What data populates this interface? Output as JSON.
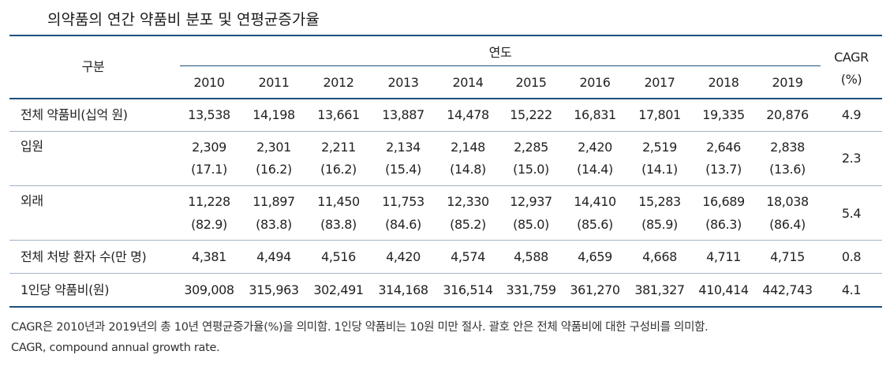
{
  "title": "의약품의 연간 약품비 분포 및 연평균증가율",
  "header": {
    "category": "구분",
    "year_group": "연도",
    "cagr_line1": "CAGR",
    "cagr_line2": "(%)",
    "years": [
      "2010",
      "2011",
      "2012",
      "2013",
      "2014",
      "2015",
      "2016",
      "2017",
      "2018",
      "2019"
    ]
  },
  "rows": [
    {
      "label": "전체 약품비(십억 원)",
      "values": [
        "13,538",
        "14,198",
        "13,661",
        "13,887",
        "14,478",
        "15,222",
        "16,831",
        "17,801",
        "19,335",
        "20,876"
      ],
      "cagr": "4.9"
    },
    {
      "label": "입원",
      "values": [
        "2,309",
        "2,301",
        "2,211",
        "2,134",
        "2,148",
        "2,285",
        "2,420",
        "2,519",
        "2,646",
        "2,838"
      ],
      "shares": [
        "(17.1)",
        "(16.2)",
        "(16.2)",
        "(15.4)",
        "(14.8)",
        "(15.0)",
        "(14.4)",
        "(14.1)",
        "(13.7)",
        "(13.6)"
      ],
      "cagr": "2.3"
    },
    {
      "label": "외래",
      "values": [
        "11,228",
        "11,897",
        "11,450",
        "11,753",
        "12,330",
        "12,937",
        "14,410",
        "15,283",
        "16,689",
        "18,038"
      ],
      "shares": [
        "(82.9)",
        "(83.8)",
        "(83.8)",
        "(84.6)",
        "(85.2)",
        "(85.0)",
        "(85.6)",
        "(85.9)",
        "(86.3)",
        "(86.4)"
      ],
      "cagr": "5.4"
    },
    {
      "label": "전체 처방 환자 수(만 명)",
      "values": [
        "4,381",
        "4,494",
        "4,516",
        "4,420",
        "4,574",
        "4,588",
        "4,659",
        "4,668",
        "4,711",
        "4,715"
      ],
      "cagr": "0.8"
    },
    {
      "label": "1인당 약품비(원)",
      "values": [
        "309,008",
        "315,963",
        "302,491",
        "314,168",
        "316,514",
        "331,759",
        "361,270",
        "381,327",
        "410,414",
        "442,743"
      ],
      "cagr": "4.1"
    }
  ],
  "notes": [
    "CAGR은 2010년과 2019년의 총 10년 연평균증가율(%)을 의미함. 1인당 약품비는 10원 미만 절사. 괄호 안은 전체 약품비에 대한 구성비를 의미함.",
    "CAGR, compound annual growth rate."
  ]
}
